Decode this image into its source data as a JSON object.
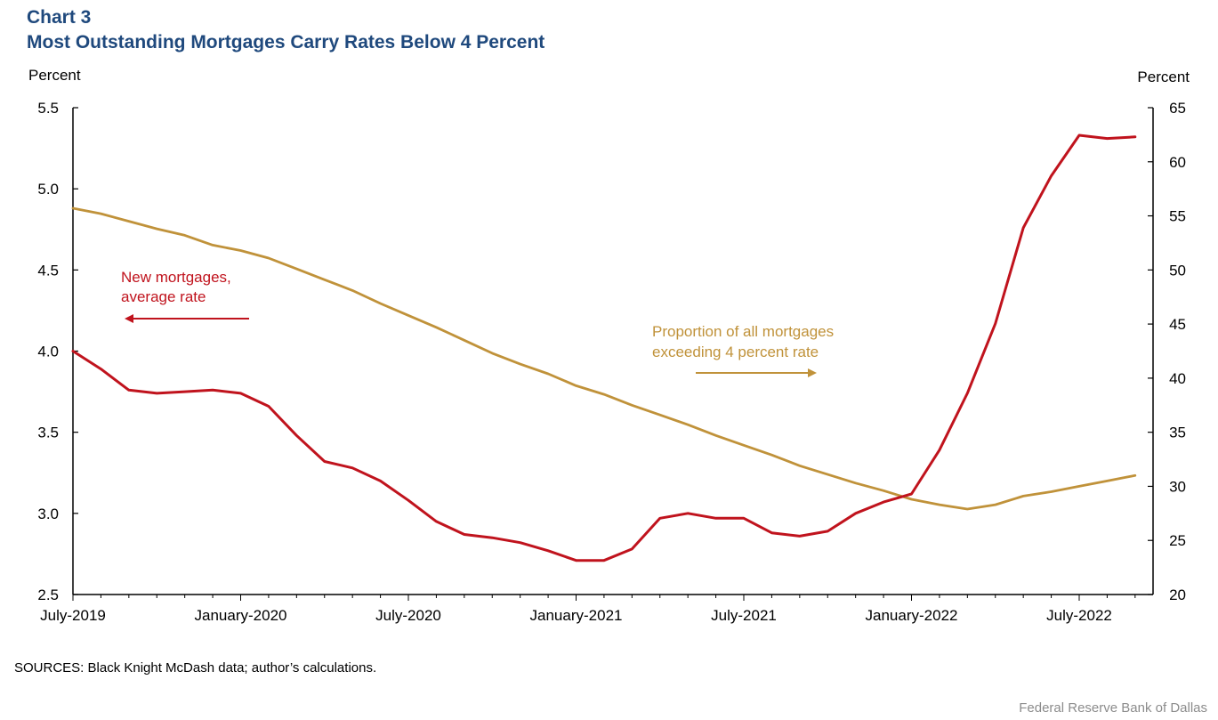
{
  "header": {
    "chart_number": "Chart 3",
    "title": "Most Outstanding Mortgages Carry Rates Below 4 Percent"
  },
  "footer": {
    "sources": "SOURCES: Black Knight McDash data; author’s calculations.",
    "credit": "Federal Reserve  Bank of Dallas"
  },
  "colors": {
    "title": "#1f497d",
    "new_mortgages": "#c0131d",
    "proportion": "#c0923a"
  },
  "chart_data": {
    "type": "line",
    "left_axis": {
      "label": "Percent",
      "ylim": [
        2.5,
        5.5
      ],
      "ticks": [
        "5.5",
        "5.0",
        "4.5",
        "4.0",
        "3.5",
        "3.0",
        "2.5"
      ]
    },
    "right_axis": {
      "label": "Percent",
      "ylim": [
        20,
        65
      ],
      "ticks": [
        "65",
        "60",
        "55",
        "50",
        "45",
        "40",
        "35",
        "30",
        "25",
        "20"
      ]
    },
    "x_ticks": [
      "July-2019",
      "January-2020",
      "July-2020",
      "January-2021",
      "July-2021",
      "January-2022",
      "July-2022"
    ],
    "x_months": [
      "2019-07",
      "2019-08",
      "2019-09",
      "2019-10",
      "2019-11",
      "2019-12",
      "2020-01",
      "2020-02",
      "2020-03",
      "2020-04",
      "2020-05",
      "2020-06",
      "2020-07",
      "2020-08",
      "2020-09",
      "2020-10",
      "2020-11",
      "2020-12",
      "2021-01",
      "2021-02",
      "2021-03",
      "2021-04",
      "2021-05",
      "2021-06",
      "2021-07",
      "2021-08",
      "2021-09",
      "2021-10",
      "2021-11",
      "2021-12",
      "2022-01",
      "2022-02",
      "2022-03",
      "2022-04",
      "2022-05",
      "2022-06",
      "2022-07",
      "2022-08",
      "2022-09"
    ],
    "grid": false,
    "series": [
      {
        "annotation": [
          "New mortgages,",
          "average rate"
        ],
        "axis": "left",
        "values": [
          4.0,
          3.89,
          3.76,
          3.74,
          3.75,
          3.76,
          3.74,
          3.66,
          3.48,
          3.32,
          3.28,
          3.2,
          3.08,
          2.95,
          2.87,
          2.85,
          2.82,
          2.77,
          2.71,
          2.71,
          2.78,
          2.97,
          3.0,
          2.97,
          2.97,
          2.88,
          2.86,
          2.89,
          3.0,
          3.07,
          3.12,
          3.39,
          3.74,
          4.17,
          4.76,
          5.08,
          5.33,
          5.31,
          5.32
        ]
      },
      {
        "annotation": [
          "Proportion of all mortgages",
          "exceeding  4 percent rate"
        ],
        "axis": "right",
        "values": [
          55.7,
          55.2,
          54.5,
          53.8,
          53.2,
          52.3,
          51.8,
          51.1,
          50.1,
          49.1,
          48.1,
          46.9,
          45.8,
          44.7,
          43.5,
          42.3,
          41.3,
          40.4,
          39.3,
          38.5,
          37.5,
          36.6,
          35.7,
          34.7,
          33.8,
          32.9,
          31.9,
          31.1,
          30.3,
          29.6,
          28.8,
          28.3,
          27.9,
          28.3,
          29.1,
          29.5,
          30.0,
          30.5,
          31.0
        ]
      }
    ]
  }
}
